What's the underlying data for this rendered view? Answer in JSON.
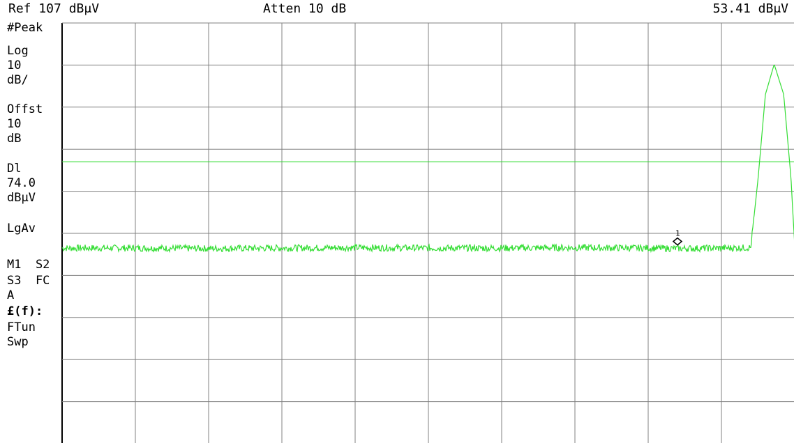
{
  "header": {
    "ref_level": "Ref 107 dBμV",
    "attenuation": "Atten 10 dB",
    "marker_readout": "53.41 dBμV"
  },
  "side_annotations": {
    "detector": "#Peak",
    "scale_type": "Log",
    "scale_value": "10",
    "scale_unit": "dB/",
    "offset_label": "Offst",
    "offset_value": "10",
    "offset_unit": "dB",
    "display_line_label": "Dl",
    "display_line_value": "74.0",
    "display_line_unit": "dBμV",
    "averaging": "LgAv",
    "trace_modes": "M1  S2",
    "trace_modes_2": "S3  FC",
    "trace_modes_3": "A",
    "ft_label": "£(f):",
    "ftun_label": "FTun",
    "swp_label": "Swp"
  },
  "colors": {
    "trace": "#33dd33",
    "display_line": "#33dd33",
    "grid": "#808080",
    "background": "#ffffff"
  },
  "chart_data": {
    "type": "line",
    "y_scale": "log",
    "ref_level_dbuv": 107,
    "db_per_div": 10,
    "vertical_divisions": 10,
    "horizontal_divisions": 10,
    "ylim": [
      7,
      107
    ],
    "display_line_dbuv": 74.0,
    "grid": true,
    "series": [
      {
        "noise_floor_dbuv": 53.4,
        "peak_x": 9.72,
        "peak_dbuv": 97.2,
        "x": [
          0,
          1,
          2,
          3,
          4,
          5,
          6,
          7,
          8,
          8.4,
          9,
          9.4,
          9.5,
          9.6,
          9.72,
          9.85,
          9.95,
          10
        ],
        "values": [
          53.5,
          53.5,
          53.4,
          53.5,
          53.6,
          53.5,
          53.5,
          53.6,
          53.5,
          53.4,
          53.5,
          53.6,
          70,
          90,
          97.2,
          90,
          70,
          53.5
        ]
      }
    ],
    "markers": [
      {
        "label": "1",
        "x": 8.4,
        "value_dbuv": 53.41
      }
    ]
  }
}
